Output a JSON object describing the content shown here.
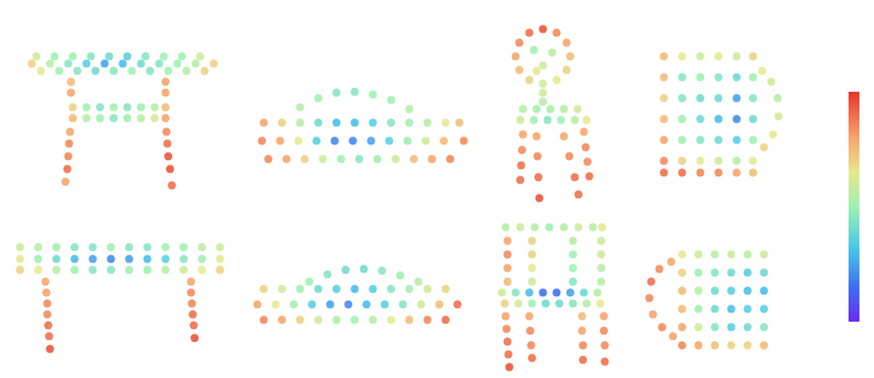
{
  "chart_data": {
    "type": "scatter",
    "xlim": [
      0,
      961
    ],
    "ylim": [
      416,
      0
    ],
    "xticks": [],
    "yticks": [],
    "tick_labels": false,
    "grid": false,
    "colorbar": {
      "range": [
        0,
        1
      ],
      "ticks": []
    },
    "series": [
      {
        "x": [
          40,
          60,
          80,
          100,
          120,
          140,
          160,
          180,
          200,
          220,
          35,
          55,
          75,
          95,
          115,
          135,
          155,
          175,
          195,
          215,
          235,
          45,
          65,
          85,
          105,
          125,
          145,
          165,
          185,
          205,
          225,
          80,
          95,
          110,
          125,
          140,
          155,
          170,
          182,
          80,
          95,
          110,
          125,
          140,
          155,
          170,
          182,
          78,
          78,
          77,
          76,
          75,
          74,
          72,
          182,
          182,
          183,
          184,
          185,
          187,
          189
        ],
        "y": [
          62,
          62,
          62,
          62,
          62,
          62,
          62,
          62,
          62,
          62,
          70,
          70,
          70,
          70,
          70,
          70,
          70,
          70,
          70,
          70,
          70,
          78,
          78,
          78,
          78,
          78,
          78,
          78,
          78,
          78,
          78,
          118,
          118,
          118,
          118,
          118,
          118,
          118,
          118,
          130,
          130,
          130,
          130,
          130,
          130,
          130,
          130,
          90,
          102,
          145,
          158,
          172,
          186,
          200,
          90,
          102,
          145,
          158,
          172,
          186,
          204
        ],
        "values": [
          0.6,
          0.5,
          0.5,
          0.45,
          0.4,
          0.35,
          0.45,
          0.5,
          0.5,
          0.6,
          0.7,
          0.55,
          0.45,
          0.35,
          0.25,
          0.3,
          0.4,
          0.45,
          0.5,
          0.55,
          0.7,
          0.65,
          0.5,
          0.45,
          0.4,
          0.45,
          0.5,
          0.45,
          0.5,
          0.55,
          0.7,
          0.7,
          0.5,
          0.45,
          0.5,
          0.45,
          0.5,
          0.55,
          0.75,
          0.75,
          0.55,
          0.5,
          0.45,
          0.5,
          0.55,
          0.6,
          0.8,
          0.75,
          0.8,
          0.8,
          0.85,
          0.85,
          0.9,
          0.8,
          0.8,
          0.8,
          0.85,
          0.9,
          0.95,
          0.95,
          0.9
        ]
      },
      {
        "x": [
          330,
          350,
          370,
          390,
          410,
          430,
          450,
          290,
          310,
          330,
          350,
          370,
          390,
          410,
          430,
          450,
          470,
          490,
          505,
          288,
          308,
          328,
          348,
          368,
          388,
          408,
          428,
          448,
          468,
          488,
          510,
          295,
          315,
          335,
          355,
          375,
          395,
          415,
          435,
          455,
          475,
          495
        ],
        "y": [
          118,
          108,
          102,
          101,
          104,
          110,
          120,
          135,
          135,
          135,
          135,
          135,
          135,
          135,
          135,
          135,
          135,
          135,
          135,
          155,
          155,
          155,
          155,
          155,
          155,
          155,
          155,
          155,
          155,
          155,
          155,
          175,
          175,
          175,
          175,
          175,
          175,
          175,
          175,
          175,
          175,
          175
        ],
        "values": [
          0.55,
          0.5,
          0.45,
          0.45,
          0.5,
          0.5,
          0.55,
          0.8,
          0.7,
          0.55,
          0.4,
          0.3,
          0.3,
          0.35,
          0.45,
          0.5,
          0.55,
          0.65,
          0.75,
          0.85,
          0.8,
          0.65,
          0.35,
          0.2,
          0.2,
          0.25,
          0.35,
          0.5,
          0.6,
          0.75,
          0.85,
          0.85,
          0.8,
          0.7,
          0.6,
          0.5,
          0.45,
          0.5,
          0.6,
          0.75,
          0.8,
          0.85
        ]
      },
      {
        "x": [
          627,
          623,
          612,
          597,
          582,
          571,
          567,
          571,
          582,
          597,
          612,
          623,
          587,
          607,
          597,
          590,
          597,
          597,
          575,
          590,
          605,
          620,
          635,
          572,
          587,
          602,
          617,
          632,
          645,
          575,
          574,
          573,
          572,
          590,
          591,
          592,
          593,
          620,
          626,
          632,
          636,
          642,
          644,
          646,
          648
        ],
        "y": [
          62,
          77,
          88,
          92,
          88,
          77,
          62,
          47,
          36,
          32,
          36,
          47,
          55,
          58,
          72,
          78,
          102,
          112,
          120,
          120,
          120,
          120,
          120,
          132,
          132,
          132,
          132,
          132,
          132,
          148,
          165,
          182,
          198,
          150,
          172,
          195,
          218,
          150,
          172,
          195,
          214,
          145,
          162,
          178,
          194
        ],
        "values": [
          0.75,
          0.7,
          0.65,
          0.6,
          0.7,
          0.75,
          0.8,
          0.85,
          0.9,
          0.95,
          0.85,
          0.8,
          0.5,
          0.55,
          0.6,
          0.65,
          0.6,
          0.55,
          0.55,
          0.5,
          0.5,
          0.55,
          0.6,
          0.6,
          0.5,
          0.45,
          0.5,
          0.55,
          0.65,
          0.8,
          0.85,
          0.9,
          0.9,
          0.8,
          0.85,
          0.9,
          0.95,
          0.8,
          0.85,
          0.9,
          0.9,
          0.8,
          0.85,
          0.85,
          0.9
        ]
      },
      {
        "x": [
          730,
          750,
          770,
          790,
          810,
          828,
          730,
          750,
          770,
          790,
          810,
          828,
          730,
          750,
          770,
          790,
          810,
          828,
          730,
          750,
          770,
          790,
          810,
          828,
          730,
          750,
          770,
          790,
          810,
          828,
          730,
          750,
          770,
          790,
          810,
          828,
          730,
          750,
          770,
          790,
          810,
          828,
          838,
          848,
          855,
          856,
          850,
          840
        ],
        "y": [
          62,
          62,
          62,
          62,
          62,
          62,
          85,
          85,
          85,
          85,
          85,
          85,
          108,
          108,
          108,
          108,
          108,
          108,
          131,
          131,
          131,
          131,
          131,
          131,
          154,
          154,
          154,
          154,
          154,
          154,
          177,
          177,
          177,
          177,
          177,
          177,
          190,
          190,
          190,
          190,
          190,
          190,
          78,
          90,
          108,
          128,
          148,
          162
        ],
        "values": [
          0.75,
          0.65,
          0.6,
          0.65,
          0.6,
          0.7,
          0.75,
          0.45,
          0.5,
          0.45,
          0.4,
          0.5,
          0.7,
          0.45,
          0.4,
          0.4,
          0.25,
          0.45,
          0.75,
          0.5,
          0.4,
          0.3,
          0.2,
          0.4,
          0.8,
          0.5,
          0.45,
          0.4,
          0.35,
          0.5,
          0.85,
          0.7,
          0.65,
          0.6,
          0.55,
          0.65,
          0.9,
          0.9,
          0.85,
          0.85,
          0.8,
          0.75,
          0.65,
          0.6,
          0.55,
          0.6,
          0.65,
          0.7
        ]
      },
      {
        "x": [
          22,
          42,
          62,
          82,
          102,
          122,
          142,
          162,
          182,
          202,
          222,
          242,
          22,
          42,
          62,
          82,
          102,
          122,
          142,
          162,
          182,
          202,
          222,
          242,
          22,
          42,
          62,
          82,
          102,
          122,
          142,
          162,
          182,
          202,
          222,
          242,
          50,
          51,
          52,
          52,
          53,
          54,
          55,
          210,
          210,
          211,
          212,
          213,
          214
        ],
        "y": [
          272,
          272,
          272,
          272,
          272,
          272,
          272,
          272,
          272,
          272,
          272,
          272,
          285,
          285,
          285,
          285,
          285,
          285,
          285,
          285,
          285,
          285,
          285,
          285,
          297,
          297,
          297,
          297,
          297,
          297,
          297,
          297,
          297,
          297,
          297,
          297,
          310,
          322,
          334,
          346,
          358,
          370,
          384,
          310,
          322,
          334,
          346,
          358,
          372
        ],
        "values": [
          0.6,
          0.55,
          0.5,
          0.45,
          0.45,
          0.5,
          0.45,
          0.45,
          0.5,
          0.5,
          0.55,
          0.6,
          0.65,
          0.5,
          0.4,
          0.3,
          0.25,
          0.2,
          0.25,
          0.3,
          0.35,
          0.45,
          0.5,
          0.65,
          0.7,
          0.65,
          0.55,
          0.5,
          0.45,
          0.45,
          0.5,
          0.5,
          0.55,
          0.6,
          0.65,
          0.7,
          0.8,
          0.8,
          0.85,
          0.85,
          0.9,
          0.9,
          0.95,
          0.8,
          0.85,
          0.85,
          0.9,
          0.9,
          0.95
        ]
      },
      {
        "x": [
          340,
          360,
          380,
          400,
          420,
          440,
          460,
          290,
          310,
          330,
          350,
          370,
          390,
          410,
          430,
          450,
          470,
          490,
          283,
          303,
          323,
          343,
          363,
          383,
          403,
          423,
          443,
          463,
          483,
          503,
          290,
          310,
          330,
          350,
          370,
          390,
          410,
          430,
          450,
          470,
          490
        ],
        "y": [
          310,
          302,
          297,
          296,
          298,
          303,
          310,
          318,
          318,
          318,
          318,
          318,
          318,
          318,
          318,
          318,
          318,
          318,
          335,
          335,
          335,
          335,
          335,
          335,
          335,
          335,
          335,
          335,
          335,
          335,
          352,
          352,
          352,
          352,
          352,
          352,
          352,
          352,
          352,
          352,
          352
        ],
        "values": [
          0.5,
          0.45,
          0.4,
          0.4,
          0.45,
          0.5,
          0.55,
          0.7,
          0.6,
          0.5,
          0.4,
          0.35,
          0.3,
          0.35,
          0.45,
          0.5,
          0.6,
          0.7,
          0.8,
          0.65,
          0.5,
          0.35,
          0.25,
          0.2,
          0.3,
          0.35,
          0.45,
          0.6,
          0.75,
          0.9,
          0.85,
          0.8,
          0.7,
          0.6,
          0.55,
          0.5,
          0.55,
          0.65,
          0.75,
          0.85,
          0.9
        ]
      },
      {
        "x": [
          556,
          572,
          588,
          604,
          620,
          636,
          652,
          662,
          558,
          558,
          558,
          558,
          585,
          585,
          585,
          585,
          630,
          630,
          630,
          630,
          661,
          661,
          661,
          661,
          552,
          567,
          582,
          597,
          612,
          627,
          642,
          657,
          555,
          570,
          585,
          600,
          615,
          630,
          645,
          660,
          556,
          557,
          558,
          559,
          560,
          582,
          583,
          584,
          585,
          640,
          640,
          641,
          641,
          664,
          664,
          665,
          665
        ],
        "y": [
          250,
          250,
          250,
          250,
          250,
          250,
          250,
          250,
          265,
          280,
          295,
          310,
          265,
          280,
          295,
          310,
          265,
          280,
          295,
          310,
          265,
          280,
          295,
          310,
          322,
          322,
          322,
          322,
          322,
          322,
          322,
          322,
          334,
          334,
          334,
          334,
          334,
          334,
          334,
          334,
          348,
          362,
          376,
          390,
          404,
          348,
          364,
          380,
          394,
          348,
          364,
          380,
          396,
          348,
          364,
          380,
          398
        ],
        "values": [
          0.55,
          0.6,
          0.55,
          0.5,
          0.55,
          0.6,
          0.55,
          0.65,
          0.8,
          0.85,
          0.8,
          0.75,
          0.7,
          0.7,
          0.65,
          0.6,
          0.55,
          0.5,
          0.5,
          0.45,
          0.6,
          0.6,
          0.55,
          0.55,
          0.6,
          0.45,
          0.3,
          0.15,
          0.15,
          0.25,
          0.4,
          0.55,
          0.7,
          0.6,
          0.5,
          0.4,
          0.4,
          0.45,
          0.55,
          0.65,
          0.8,
          0.85,
          0.9,
          0.9,
          0.95,
          0.8,
          0.85,
          0.85,
          0.9,
          0.75,
          0.8,
          0.85,
          0.9,
          0.8,
          0.85,
          0.85,
          0.9
        ]
      },
      {
        "x": [
          750,
          768,
          786,
          804,
          822,
          840,
          750,
          768,
          786,
          804,
          822,
          840,
          750,
          768,
          786,
          804,
          822,
          840,
          750,
          768,
          786,
          804,
          822,
          840,
          750,
          768,
          786,
          804,
          822,
          840,
          750,
          768,
          786,
          804,
          822,
          840,
          738,
          725,
          716,
          714,
          718,
          728,
          740
        ],
        "y": [
          280,
          280,
          280,
          280,
          280,
          280,
          300,
          300,
          300,
          300,
          300,
          300,
          320,
          320,
          320,
          320,
          320,
          320,
          340,
          340,
          340,
          340,
          340,
          340,
          360,
          360,
          360,
          360,
          360,
          360,
          380,
          380,
          380,
          380,
          380,
          380,
          288,
          296,
          310,
          328,
          346,
          360,
          370
        ],
        "values": [
          0.65,
          0.6,
          0.55,
          0.6,
          0.55,
          0.6,
          0.7,
          0.5,
          0.45,
          0.4,
          0.35,
          0.4,
          0.75,
          0.55,
          0.4,
          0.35,
          0.3,
          0.3,
          0.75,
          0.5,
          0.4,
          0.3,
          0.35,
          0.35,
          0.8,
          0.6,
          0.45,
          0.35,
          0.4,
          0.45,
          0.85,
          0.8,
          0.75,
          0.7,
          0.7,
          0.75,
          0.8,
          0.85,
          0.9,
          0.85,
          0.8,
          0.85,
          0.8
        ]
      }
    ]
  }
}
